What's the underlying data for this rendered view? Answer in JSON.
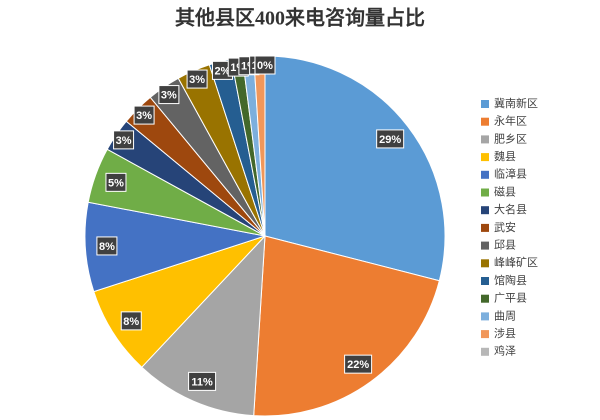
{
  "chart_data": {
    "type": "pie",
    "title": "其他县区400来电咨询量占比",
    "categories": [
      "冀南新区",
      "永年区",
      "肥乡区",
      "魏县",
      "临漳县",
      "磁县",
      "大名县",
      "武安",
      "邱县",
      "峰峰矿区",
      "馆陶县",
      "广平县",
      "曲周",
      "涉县",
      "鸡泽"
    ],
    "values": [
      29,
      22,
      11,
      8,
      8,
      5,
      3,
      3,
      3,
      3,
      2,
      1,
      1,
      1,
      0
    ],
    "value_labels": [
      "29%",
      "22%",
      "11%",
      "8%",
      "8%",
      "5%",
      "3%",
      "3%",
      "3%",
      "3%",
      "2%",
      "1%",
      "1%",
      "1%",
      "0%"
    ],
    "colors": [
      "#5b9bd5",
      "#ed7d31",
      "#a5a5a5",
      "#ffc000",
      "#4472c4",
      "#70ad47",
      "#264478",
      "#9e480e",
      "#636363",
      "#997300",
      "#255e91",
      "#43682b",
      "#7cafdd",
      "#f1975a",
      "#b7b7b7"
    ],
    "legend": "right"
  }
}
